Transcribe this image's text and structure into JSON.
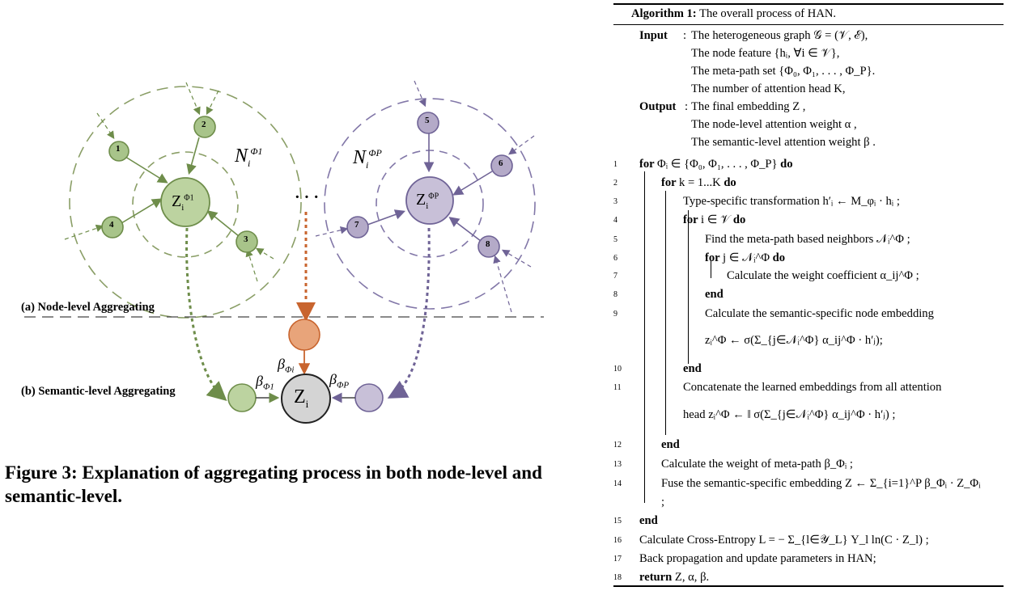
{
  "figure": {
    "node_level_label": "(a) Node-level Aggregating",
    "semantic_level_label": "(b) Semantic-level Aggregating",
    "caption": "Figure 3: Explanation of aggregating process in both node-level and semantic-level.",
    "nodes_left": [
      "1",
      "2",
      "3",
      "4"
    ],
    "nodes_right": [
      "5",
      "6",
      "7",
      "8"
    ],
    "center_left": "Z",
    "center_right": "Z",
    "final_node": "Z",
    "neighbor_left_label": "N",
    "neighbor_right_label": "N",
    "ellipsis": "· · ·",
    "beta_left": "β",
    "beta_mid": "β",
    "beta_right": "β",
    "colors": {
      "green": "#a8c48a",
      "green_stroke": "#6e8d4a",
      "purple": "#b4aac8",
      "purple_stroke": "#6f6396",
      "orange": "#e8a47a",
      "orange_stroke": "#c8642e",
      "gray": "#d4d4d4"
    }
  },
  "algorithm": {
    "title": "Algorithm 1:",
    "title_text": "The overall process of HAN.",
    "input_label": "Input",
    "output_label": "Output",
    "input_lines": [
      "The heterogeneous graph 𝒢 = (𝒱, ℰ),",
      "The node feature {hᵢ, ∀i ∈ 𝒱},",
      "The meta-path set {Φ₀, Φ₁, . . . , Φ_P}.",
      "The number of attention head K,"
    ],
    "output_lines": [
      "The final embedding Z ,",
      "The node-level attention weight α ,",
      "The semantic-level attention weight β ."
    ],
    "steps": [
      {
        "n": "1",
        "text": "for Φᵢ ∈ {Φ₀, Φ₁, . . . , Φ_P} do"
      },
      {
        "n": "2",
        "text": "for k = 1...K do"
      },
      {
        "n": "3",
        "text": "Type-specific transformation h′ᵢ ← M_φᵢ · hᵢ ;"
      },
      {
        "n": "4",
        "text": "for i ∈ 𝒱 do"
      },
      {
        "n": "5",
        "text": "Find the meta-path based neighbors 𝒩ᵢ^Φ ;"
      },
      {
        "n": "6",
        "text": "for j ∈ 𝒩ᵢ^Φ do"
      },
      {
        "n": "7",
        "text": "Calculate the weight coefficient α_ij^Φ ;"
      },
      {
        "n": "8",
        "text": "end"
      },
      {
        "n": "9",
        "text": "Calculate the semantic-specific node embedding"
      },
      {
        "n": "",
        "text": "zᵢ^Φ ← σ(Σ_{j∈𝒩ᵢ^Φ} α_ij^Φ · h′ⱼ);"
      },
      {
        "n": "10",
        "text": "end"
      },
      {
        "n": "11",
        "text": "Concatenate the learned embeddings from all attention"
      },
      {
        "n": "",
        "text": "head zᵢ^Φ ← ‖ σ(Σ_{j∈𝒩ᵢ^Φ} α_ij^Φ · h′ⱼ) ;"
      },
      {
        "n": "12",
        "text": "end"
      },
      {
        "n": "13",
        "text": "Calculate the weight of meta-path β_Φᵢ ;"
      },
      {
        "n": "14",
        "text": "Fuse the semantic-specific embedding Z ← Σ_{i=1}^P β_Φᵢ · Z_Φᵢ"
      },
      {
        "n": "",
        "text": ";"
      },
      {
        "n": "15",
        "text": "end"
      },
      {
        "n": "16",
        "text": "Calculate Cross-Entropy L = − Σ_{l∈𝒴_L} Y_l ln(C · Z_l) ;"
      },
      {
        "n": "17",
        "text": "Back propagation and update parameters in HAN;"
      },
      {
        "n": "18",
        "text": "return Z, α, β."
      }
    ]
  }
}
